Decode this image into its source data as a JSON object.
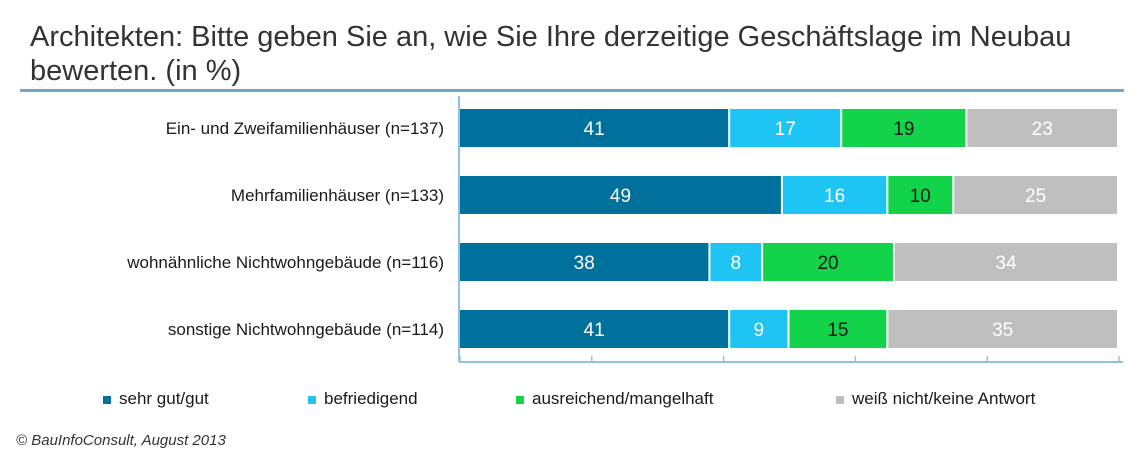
{
  "title": "Architekten: Bitte geben Sie an, wie Sie Ihre derzeitige Geschäftslage im Neubau bewerten. (in %)",
  "source": "© BauInfoConsult, August 2013",
  "chart_data": {
    "type": "bar",
    "orientation": "horizontal",
    "stacked": true,
    "categories": [
      "Ein- und Zweifamilienhäuser (n=137)",
      "Mehrfamilienhäuser (n=133)",
      "wohnähnliche Nichtwohngebäude (n=116)",
      "sonstige Nichtwohngebäude (n=114)"
    ],
    "series": [
      {
        "name": "sehr gut/gut",
        "color": "#00709d",
        "label_color": "#ffffff",
        "values": [
          41,
          49,
          38,
          41
        ]
      },
      {
        "name": "befriedigend",
        "color": "#1ec4f4",
        "label_color": "#ffffff",
        "values": [
          17,
          16,
          8,
          9
        ]
      },
      {
        "name": "ausreichend/mangelhaft",
        "color": "#12d34a",
        "label_color": "#1a1a1a",
        "values": [
          19,
          10,
          20,
          15
        ]
      },
      {
        "name": "weiß nicht/keine Antwort",
        "color": "#bfbfbf",
        "label_color": "#ffffff",
        "values": [
          23,
          25,
          34,
          35
        ]
      }
    ],
    "xlim": [
      0,
      100
    ],
    "legend_position": "bottom",
    "grid": false
  }
}
